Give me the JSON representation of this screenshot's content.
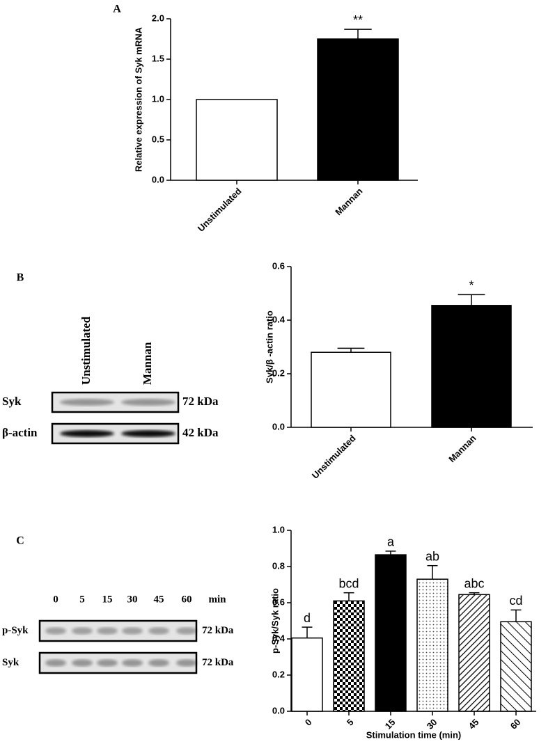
{
  "panel_labels": [
    "A",
    "B",
    "C"
  ],
  "chart_data": [
    {
      "type": "bar",
      "ylabel": "Relative expression of Syk mRNA",
      "categories": [
        "Unstimulated",
        "Mannan"
      ],
      "values": [
        1.0,
        1.75
      ],
      "errors": [
        null,
        0.12
      ],
      "significance": [
        null,
        "**"
      ],
      "colors": [
        "#ffffff",
        "#000000"
      ],
      "ylim": [
        0,
        2.0
      ],
      "yticks": [
        {
          "value": 0,
          "label": "0.0"
        },
        {
          "value": 0.5,
          "label": "0.5"
        },
        {
          "value": 1,
          "label": "1.0"
        },
        {
          "value": 1.5,
          "label": "1.5"
        },
        {
          "value": 2,
          "label": "2.0"
        }
      ]
    },
    {
      "type": "bar",
      "ylabel": "Syk/β -actin ratio",
      "categories": [
        "Unstimulated",
        "Mannan"
      ],
      "values": [
        0.28,
        0.455
      ],
      "errors": [
        0.015,
        0.04
      ],
      "significance": [
        null,
        "*"
      ],
      "colors": [
        "#ffffff",
        "#000000"
      ],
      "ylim": [
        0,
        0.6
      ],
      "yticks": [
        {
          "value": 0,
          "label": "0.0"
        },
        {
          "value": 0.2,
          "label": "0.2"
        },
        {
          "value": 0.4,
          "label": "0.4"
        },
        {
          "value": 0.6,
          "label": "0.6"
        }
      ]
    },
    {
      "type": "bar",
      "ylabel": "p-Syk/Syk ratio",
      "xlabel": "Stimulation time (min)",
      "categories": [
        "0",
        "5",
        "15",
        "30",
        "45",
        "60"
      ],
      "values": [
        0.405,
        0.61,
        0.865,
        0.73,
        0.645,
        0.495
      ],
      "errors": [
        0.06,
        0.045,
        0.02,
        0.075,
        0.01,
        0.065
      ],
      "significance": [
        "d",
        "bcd",
        "a",
        "ab",
        "abc",
        "cd"
      ],
      "colors": [
        "#ffffff",
        "checker",
        "#000000",
        "dots",
        "hatch",
        "backhatch"
      ],
      "ylim": [
        0,
        1.0
      ],
      "yticks": [
        {
          "value": 0,
          "label": "0.0"
        },
        {
          "value": 0.2,
          "label": "0.2"
        },
        {
          "value": 0.4,
          "label": "0.4"
        },
        {
          "value": 0.6,
          "label": "0.6"
        },
        {
          "value": 0.8,
          "label": "0.8"
        },
        {
          "value": 1,
          "label": "1.0"
        }
      ]
    }
  ],
  "blots": [
    {
      "lanes": [
        "Unstimulated",
        "Mannan"
      ],
      "rows": [
        {
          "name": "Syk",
          "size": "72 kDa"
        },
        {
          "name": "β-actin",
          "size": "42 kDa"
        }
      ]
    },
    {
      "lanes": [
        "0",
        "5",
        "15",
        "30",
        "45",
        "60"
      ],
      "unit": "min",
      "rows": [
        {
          "name": "p-Syk",
          "size": "72 kDa"
        },
        {
          "name": "Syk",
          "size": "72 kDa"
        }
      ]
    }
  ]
}
